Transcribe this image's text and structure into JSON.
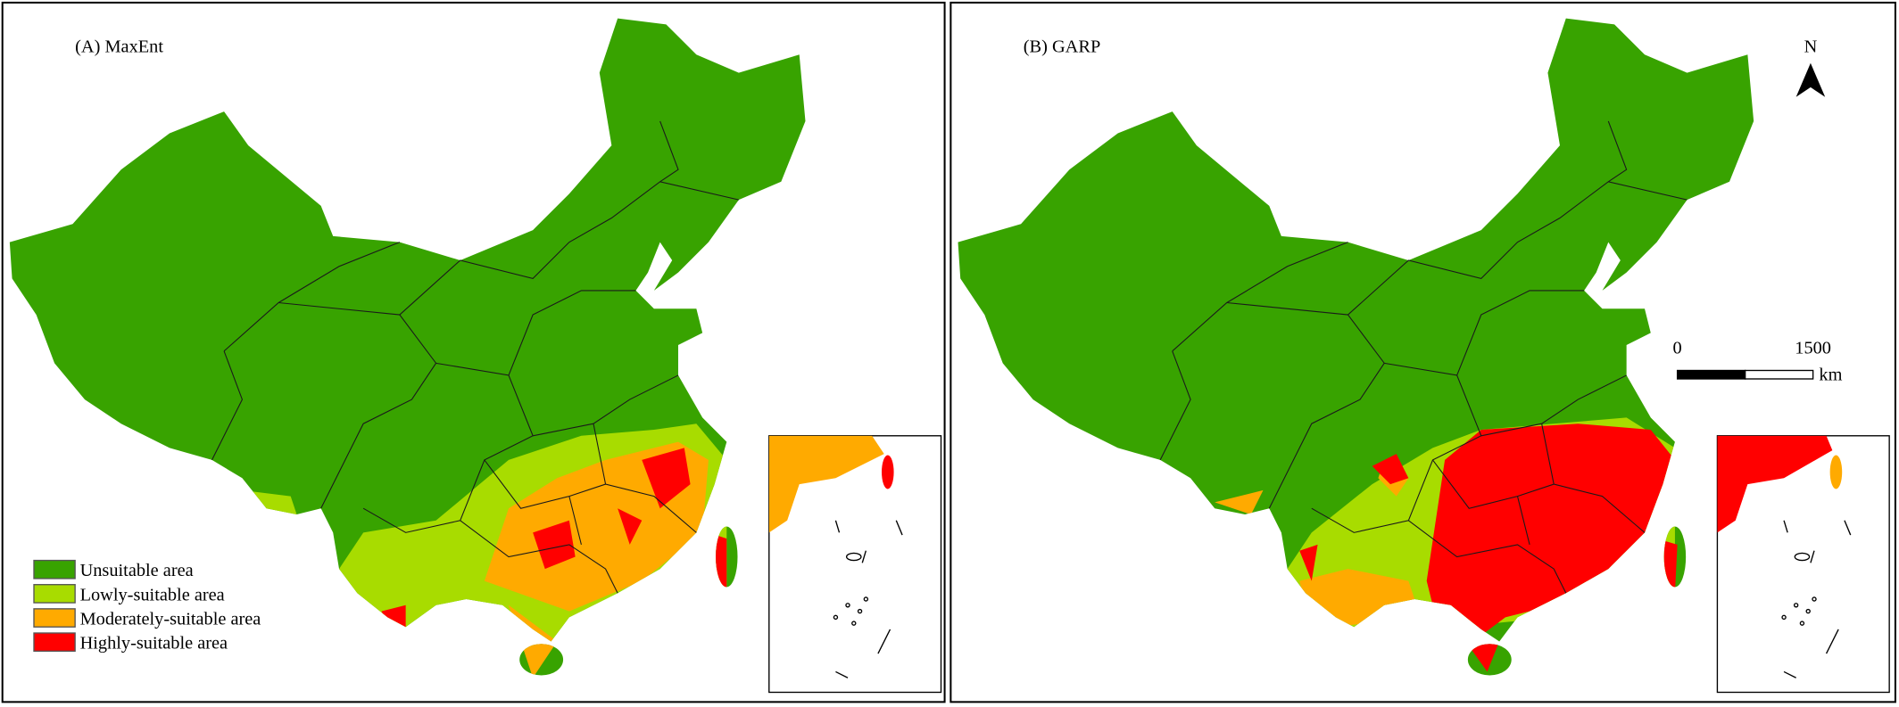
{
  "panels": [
    {
      "title": "(A) MaxEnt"
    },
    {
      "title": "(B) GARP"
    }
  ],
  "legend": {
    "items": [
      {
        "label": "Unsuitable area",
        "color": "#38a300"
      },
      {
        "label": "Lowly-suitable area",
        "color": "#a8dc00"
      },
      {
        "label": "Moderately-suitable area",
        "color": "#ffaa00"
      },
      {
        "label": "Highly-suitable area",
        "color": "#ff0000"
      }
    ]
  },
  "north_arrow": {
    "label": "N"
  },
  "scale_bar": {
    "start": "0",
    "end": "1500",
    "unit": "km"
  }
}
